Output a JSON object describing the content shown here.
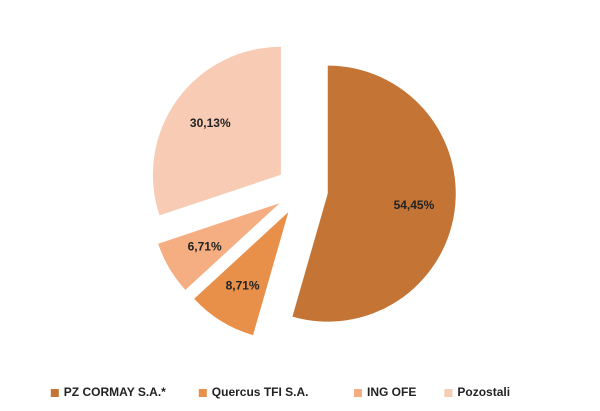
{
  "chart_data": {
    "type": "pie",
    "categories": [
      "PZ CORMAY S.A.*",
      "Quercus TFI S.A.",
      "ING OFE",
      "Pozostali"
    ],
    "values": [
      54.45,
      8.71,
      6.71,
      30.13
    ],
    "value_labels": [
      "54,45%",
      "8,71%",
      "6,71%",
      "30,13%"
    ],
    "colors": [
      "#C47535",
      "#E8904A",
      "#F5AE82",
      "#F8CBB4"
    ],
    "legend": "bottom"
  }
}
